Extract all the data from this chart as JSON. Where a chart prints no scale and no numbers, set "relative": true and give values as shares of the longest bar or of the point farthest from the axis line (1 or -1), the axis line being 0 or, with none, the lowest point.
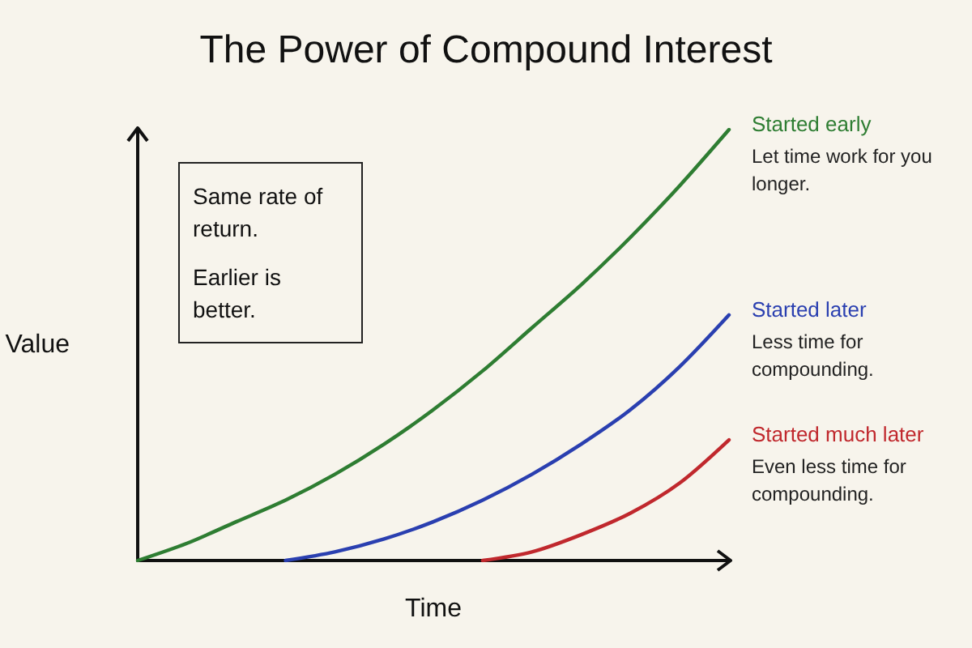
{
  "chart_data": {
    "type": "line",
    "title": "The Power of Compound Interest",
    "xlabel": "Time",
    "ylabel": "Value",
    "relative": true,
    "legend": false,
    "grid": false,
    "marker": "none",
    "line_style": "solid",
    "categories": [
      null,
      null,
      null,
      null,
      null,
      null,
      null,
      null,
      null,
      null,
      null,
      null,
      null
    ],
    "series": [
      {
        "name": "Started early",
        "color": "#2e7d32",
        "values": [
          0,
          0.04,
          0.09,
          0.14,
          0.2,
          0.27,
          0.35,
          0.44,
          0.54,
          0.64,
          0.75,
          0.87,
          1
        ]
      },
      {
        "name": "Started later",
        "color": "#2a3fb0",
        "values": [
          null,
          null,
          null,
          0,
          0.02,
          0.05,
          0.09,
          0.14,
          0.2,
          0.27,
          0.35,
          0.45,
          0.57
        ]
      },
      {
        "name": "Started much later",
        "color": "#c0282d",
        "values": [
          null,
          null,
          null,
          null,
          null,
          null,
          null,
          0,
          0.02,
          0.06,
          0.11,
          0.18,
          0.28
        ]
      }
    ],
    "annotations": [
      "Same rate of return.",
      "Earlier is better.",
      "Let time work for you longer.",
      "Less time for compounding.",
      "Even less time for compounding."
    ]
  }
}
